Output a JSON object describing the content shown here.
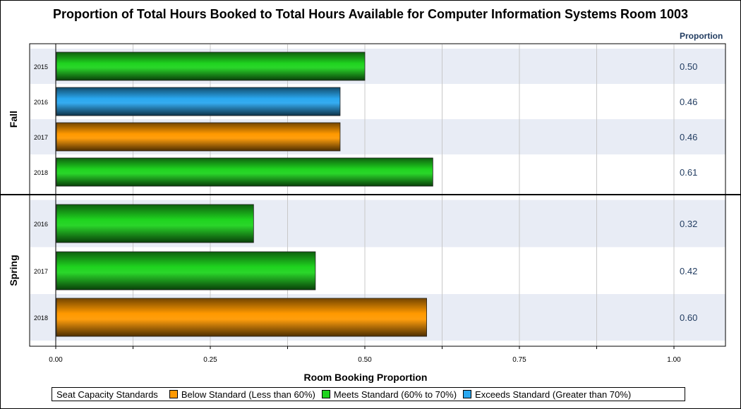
{
  "title": "Proportion of Total Hours Booked to Total Hours Available for Computer Information Systems Room 1003",
  "value_column_header": "Proportion",
  "colors": {
    "below": "#ff9900",
    "meets": "#1fd41f",
    "exceeds": "#2aa8f0",
    "band": "#e8ecf5"
  },
  "legend": {
    "title": "Seat Capacity Standards",
    "items": [
      {
        "key": "below",
        "label": "Below Standard (Less than 60%)"
      },
      {
        "key": "meets",
        "label": "Meets Standard (60% to 70%)"
      },
      {
        "key": "exceeds",
        "label": "Exceeds Standard (Greater than 70%)"
      }
    ]
  },
  "chart_data": {
    "type": "bar",
    "orientation": "horizontal",
    "title": "Proportion of Total Hours Booked to Total Hours Available for Computer Information Systems Room 1003",
    "xlabel": "Room Booking Proportion",
    "xlim": [
      0,
      1.0
    ],
    "ticks": [
      "0.00",
      "0.25",
      "0.50",
      "0.75",
      "1.00"
    ],
    "grid": true,
    "legend_position": "bottom",
    "groups": [
      {
        "name": "Fall",
        "rows": [
          {
            "year": "2015",
            "value": 0.5,
            "label": "0.50",
            "standard": "meets"
          },
          {
            "year": "2016",
            "value": 0.46,
            "label": "0.46",
            "standard": "exceeds"
          },
          {
            "year": "2017",
            "value": 0.46,
            "label": "0.46",
            "standard": "below"
          },
          {
            "year": "2018",
            "value": 0.61,
            "label": "0.61",
            "standard": "meets"
          }
        ]
      },
      {
        "name": "Spring",
        "rows": [
          {
            "year": "2016",
            "value": 0.32,
            "label": "0.32",
            "standard": "meets"
          },
          {
            "year": "2017",
            "value": 0.42,
            "label": "0.42",
            "standard": "meets"
          },
          {
            "year": "2018",
            "value": 0.6,
            "label": "0.60",
            "standard": "below"
          }
        ]
      }
    ]
  }
}
